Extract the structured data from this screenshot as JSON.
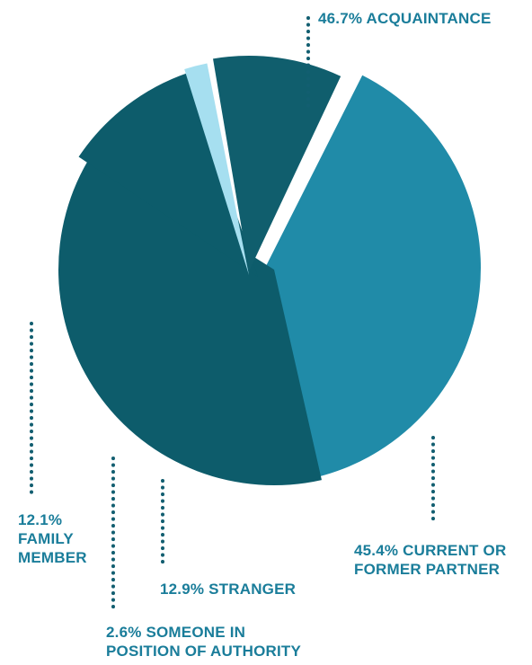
{
  "chart_data": {
    "type": "pie",
    "title": "",
    "slices": [
      {
        "value": 46.7,
        "color": "#208ba8",
        "label_lines": [
          "46.7% ACQUAINTANCE"
        ]
      },
      {
        "value": 45.4,
        "color": "#0d5c6b",
        "label_lines": [
          "45.4% CURRENT OR",
          "FORMER PARTNER"
        ]
      },
      {
        "value": 12.9,
        "color": "#0d5c6b",
        "label_lines": [
          "12.9% STRANGER"
        ]
      },
      {
        "value": 2.6,
        "color": "#a6dff0",
        "label_lines": [
          "2.6% SOMEONE IN",
          "POSITION OF AUTHORITY"
        ]
      },
      {
        "value": 12.1,
        "color": "#105e6d",
        "label_lines": [
          "12.1%",
          "FAMILY",
          "MEMBER"
        ]
      }
    ],
    "label_color": "#1a7d9a",
    "leader_color": "#125e70",
    "legend": "none"
  }
}
